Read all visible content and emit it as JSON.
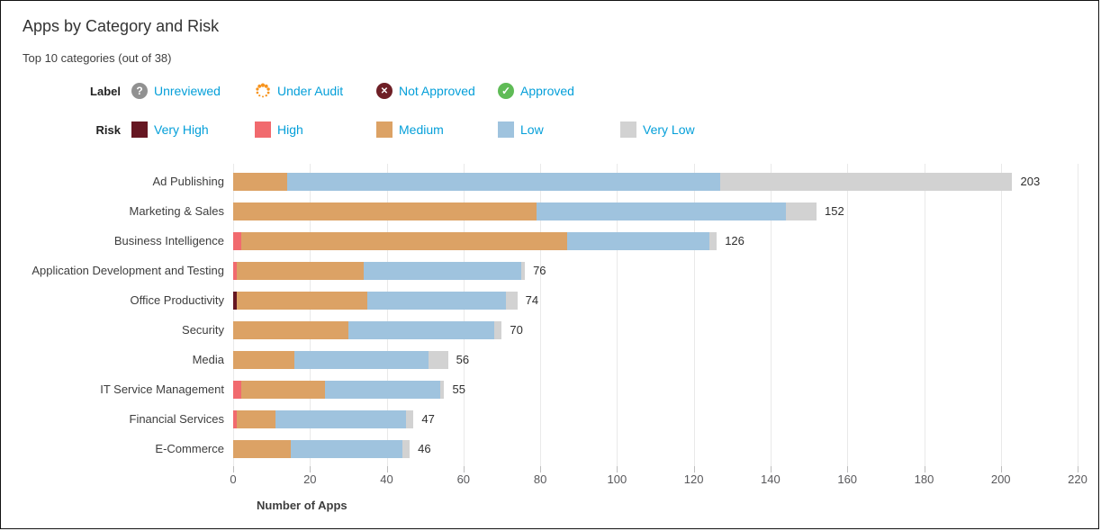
{
  "header": {
    "title": "Apps by Category and Risk",
    "subtitle": "Top 10 categories (out of 38)"
  },
  "colors": {
    "risk": {
      "very_high": "#661722",
      "high": "#f16a6e",
      "medium": "#dca265",
      "low": "#9fc3de",
      "very_low": "#d2d2d2"
    },
    "legend_text": "#049fd9",
    "label_icons": {
      "unreviewed": "#919191",
      "under_audit": "#f7941e",
      "not_approved": "#6e1f26",
      "approved": "#5fbb56"
    },
    "gridline": "#e9e9e9"
  },
  "legend": {
    "label_row": {
      "caption": "Label",
      "items": [
        {
          "label": "Unreviewed",
          "key": "unreviewed",
          "icon": "question-circle-icon"
        },
        {
          "label": "Under Audit",
          "key": "under_audit",
          "icon": "dotted-spinner-icon"
        },
        {
          "label": "Not Approved",
          "key": "not_approved",
          "icon": "x-circle-icon"
        },
        {
          "label": "Approved",
          "key": "approved",
          "icon": "check-circle-icon"
        }
      ]
    },
    "risk_row": {
      "caption": "Risk",
      "items": [
        {
          "label": "Very High",
          "key": "very_high"
        },
        {
          "label": "High",
          "key": "high"
        },
        {
          "label": "Medium",
          "key": "medium"
        },
        {
          "label": "Low",
          "key": "low"
        },
        {
          "label": "Very Low",
          "key": "very_low"
        }
      ]
    }
  },
  "chart_data": {
    "type": "bar",
    "stacked": true,
    "orientation": "horizontal",
    "title": "Apps by Category and Risk",
    "xlabel": "Number of Apps",
    "ylabel": "",
    "xlim": [
      0,
      220
    ],
    "xticks": [
      0,
      20,
      40,
      60,
      80,
      100,
      120,
      140,
      160,
      180,
      200,
      220
    ],
    "grid": true,
    "series_order": [
      "very_high",
      "high",
      "medium",
      "low",
      "very_low"
    ],
    "series_labels": {
      "very_high": "Very High",
      "high": "High",
      "medium": "Medium",
      "low": "Low",
      "very_low": "Very Low"
    },
    "rows": [
      {
        "category": "Ad Publishing",
        "total": 203,
        "segments": {
          "very_high": 0,
          "high": 0,
          "medium": 14,
          "low": 113,
          "very_low": 76
        }
      },
      {
        "category": "Marketing & Sales",
        "total": 152,
        "segments": {
          "very_high": 0,
          "high": 0,
          "medium": 79,
          "low": 65,
          "very_low": 8
        }
      },
      {
        "category": "Business Intelligence",
        "total": 126,
        "segments": {
          "very_high": 0,
          "high": 2,
          "medium": 85,
          "low": 37,
          "very_low": 2
        }
      },
      {
        "category": "Application Development and Testing",
        "total": 76,
        "segments": {
          "very_high": 0,
          "high": 1,
          "medium": 33,
          "low": 41,
          "very_low": 1
        }
      },
      {
        "category": "Office Productivity",
        "total": 74,
        "segments": {
          "very_high": 1,
          "high": 0,
          "medium": 34,
          "low": 36,
          "very_low": 3
        }
      },
      {
        "category": "Security",
        "total": 70,
        "segments": {
          "very_high": 0,
          "high": 0,
          "medium": 30,
          "low": 38,
          "very_low": 2
        }
      },
      {
        "category": "Media",
        "total": 56,
        "segments": {
          "very_high": 0,
          "high": 0,
          "medium": 16,
          "low": 35,
          "very_low": 5
        }
      },
      {
        "category": "IT Service Management",
        "total": 55,
        "segments": {
          "very_high": 0,
          "high": 2,
          "medium": 22,
          "low": 30,
          "very_low": 1
        }
      },
      {
        "category": "Financial Services",
        "total": 47,
        "segments": {
          "very_high": 0,
          "high": 1,
          "medium": 10,
          "low": 34,
          "very_low": 2
        }
      },
      {
        "category": "E-Commerce",
        "total": 46,
        "segments": {
          "very_high": 0,
          "high": 0,
          "medium": 15,
          "low": 29,
          "very_low": 2
        }
      }
    ]
  }
}
